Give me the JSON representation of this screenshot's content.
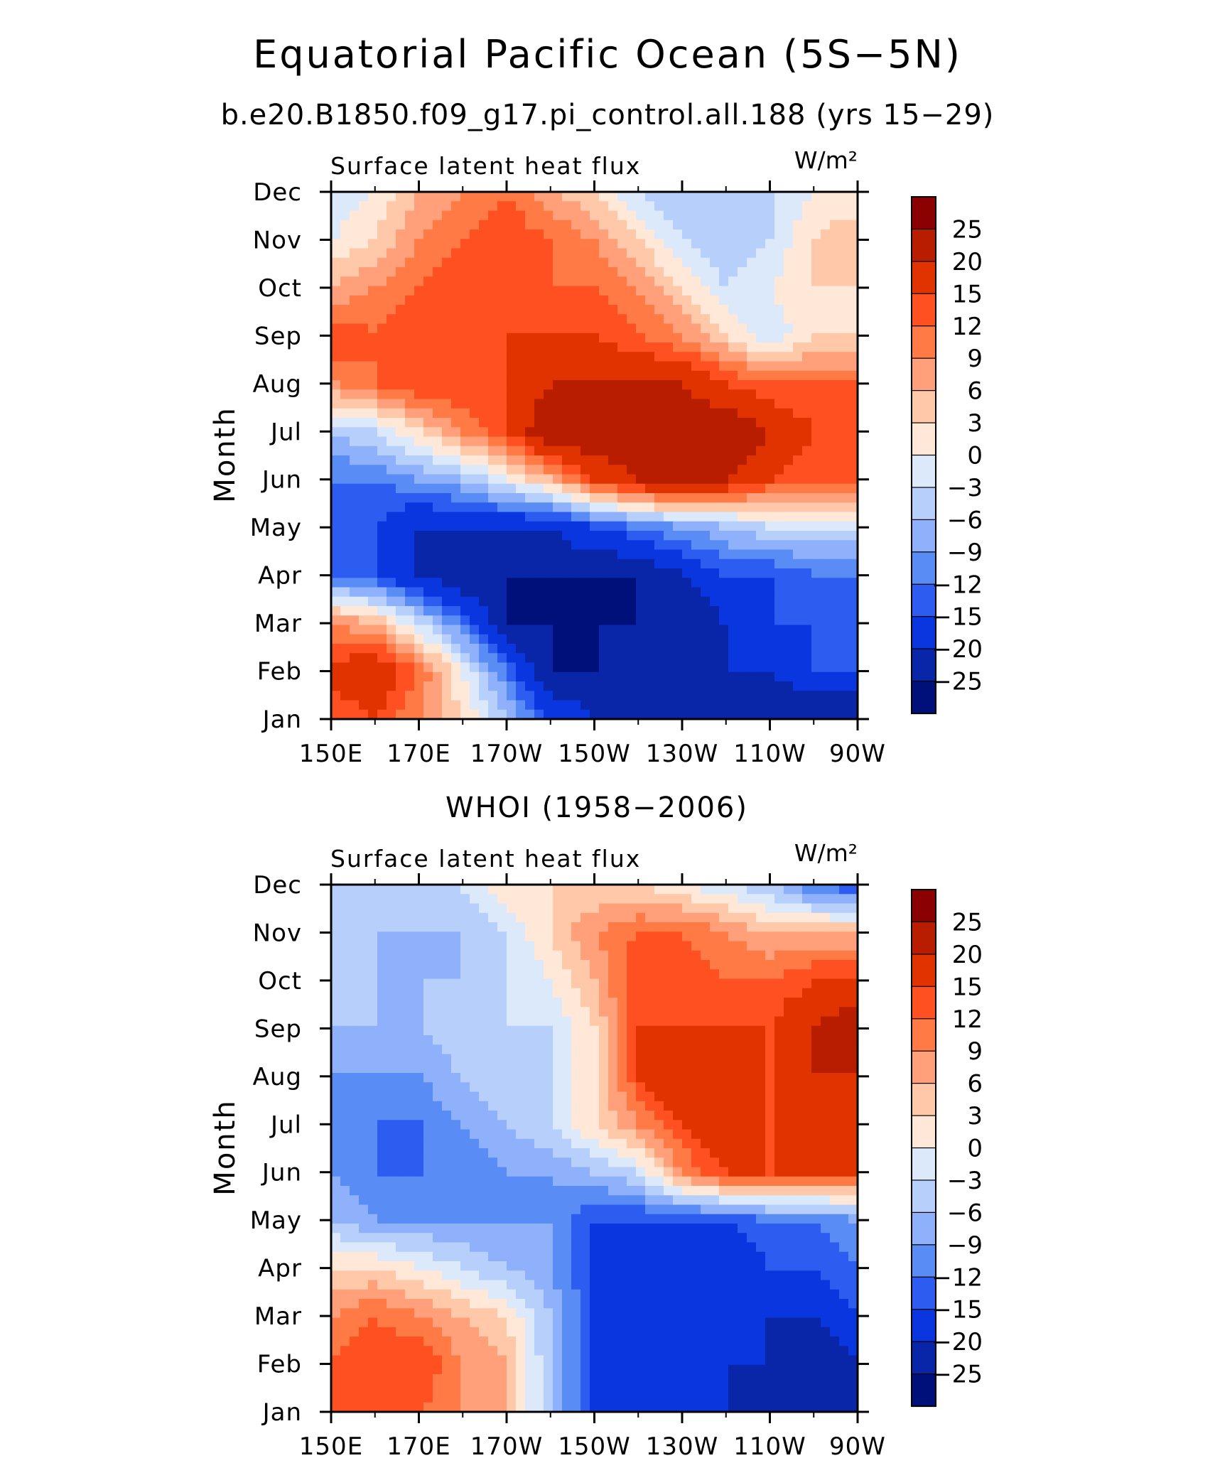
{
  "figure": {
    "title": "Equatorial Pacific Ocean (5S−5N)"
  },
  "colorbar": {
    "levels": [
      "25",
      "20",
      "15",
      "12",
      "9",
      "6",
      "3",
      "0",
      "−3",
      "−6",
      "−9",
      "−12",
      "−15",
      "−20",
      "−25"
    ],
    "colors": [
      "#8b0000",
      "#b81d00",
      "#e03300",
      "#ff5021",
      "#ff7a45",
      "#ffa07a",
      "#ffc8a8",
      "#ffe8d8",
      "#dce9fb",
      "#b7cffb",
      "#8fb1fb",
      "#5a8cf5",
      "#2c5cf0",
      "#0a36e0",
      "#0a26a8",
      "#00107a"
    ]
  },
  "chart_data": [
    {
      "type": "heatmap",
      "title": "b.e20.B1850.f09_g17.pi_control.all.188 (yrs 15−29)",
      "left_label": "Surface latent heat flux",
      "units": "W/m²",
      "ylabel": "Month",
      "xlabel": "",
      "x_ticks": [
        "150E",
        "170E",
        "170W",
        "150W",
        "130W",
        "110W",
        "90W"
      ],
      "y_ticks": [
        "Jan",
        "Feb",
        "Mar",
        "Apr",
        "May",
        "Jun",
        "Jul",
        "Aug",
        "Sep",
        "Oct",
        "Nov",
        "Dec"
      ],
      "x_range": [
        150,
        270
      ],
      "y_range": [
        1,
        12
      ],
      "z": [
        [
          12,
          15,
          9,
          3,
          -6,
          -15,
          -20,
          -20,
          -20,
          -20,
          -25,
          -25,
          -25
        ],
        [
          16,
          20,
          12,
          0,
          -12,
          -25,
          -25,
          -20,
          -20,
          -20,
          -20,
          -15,
          -15
        ],
        [
          9,
          6,
          -3,
          -12,
          -25,
          -25,
          -25,
          -25,
          -25,
          -20,
          -15,
          -15,
          -12
        ],
        [
          -12,
          -15,
          -20,
          -25,
          -25,
          -25,
          -25,
          -25,
          -20,
          -15,
          -15,
          -12,
          -12
        ],
        [
          -12,
          -15,
          -20,
          -20,
          -20,
          -20,
          -15,
          -12,
          -9,
          -6,
          -3,
          -3,
          -3
        ],
        [
          -12,
          -12,
          -9,
          -6,
          0,
          6,
          15,
          20,
          25,
          20,
          15,
          12,
          15
        ],
        [
          -6,
          -3,
          3,
          9,
          15,
          25,
          25,
          25,
          25,
          25,
          20,
          15,
          15
        ],
        [
          9,
          12,
          15,
          15,
          15,
          20,
          20,
          20,
          20,
          15,
          12,
          12,
          12
        ],
        [
          15,
          12,
          15,
          15,
          15,
          15,
          15,
          12,
          9,
          3,
          -3,
          3,
          3
        ],
        [
          6,
          9,
          12,
          15,
          15,
          12,
          12,
          9,
          3,
          -3,
          0,
          3,
          3
        ],
        [
          0,
          3,
          9,
          12,
          15,
          12,
          9,
          3,
          -3,
          -6,
          -3,
          3,
          6
        ],
        [
          -3,
          0,
          6,
          9,
          12,
          6,
          3,
          -3,
          -6,
          -6,
          -3,
          0,
          0
        ]
      ]
    },
    {
      "type": "heatmap",
      "title": "WHOI (1958−2006)",
      "left_label": "Surface latent heat flux",
      "units": "W/m²",
      "ylabel": "Month",
      "xlabel": "",
      "x_ticks": [
        "150E",
        "170E",
        "170W",
        "150W",
        "130W",
        "110W",
        "90W"
      ],
      "y_ticks": [
        "Jan",
        "Feb",
        "Mar",
        "Apr",
        "May",
        "Jun",
        "Jul",
        "Aug",
        "Sep",
        "Oct",
        "Nov",
        "Dec"
      ],
      "x_range": [
        150,
        270
      ],
      "y_range": [
        1,
        12
      ],
      "z": [
        [
          12,
          15,
          12,
          9,
          6,
          -6,
          -15,
          -15,
          -15,
          -20,
          -20,
          -25,
          -25
        ],
        [
          12,
          15,
          15,
          9,
          6,
          -6,
          -15,
          -15,
          -20,
          -20,
          -20,
          -25,
          -20
        ],
        [
          9,
          12,
          9,
          6,
          3,
          -6,
          -15,
          -15,
          -15,
          -15,
          -20,
          -20,
          -15
        ],
        [
          3,
          3,
          0,
          -3,
          -6,
          -9,
          -15,
          -15,
          -15,
          -20,
          -15,
          -15,
          -12
        ],
        [
          -6,
          -9,
          -9,
          -9,
          -9,
          -9,
          -15,
          -15,
          -15,
          -15,
          -12,
          -12,
          -9
        ],
        [
          -9,
          -12,
          -12,
          -12,
          -9,
          -9,
          -6,
          -3,
          9,
          15,
          15,
          15,
          15
        ],
        [
          -12,
          -12,
          -12,
          -9,
          -6,
          -3,
          3,
          9,
          15,
          20,
          15,
          20,
          20
        ],
        [
          -9,
          -9,
          -9,
          -6,
          -3,
          -3,
          3,
          15,
          20,
          20,
          15,
          20,
          20
        ],
        [
          -6,
          -6,
          -6,
          -3,
          -3,
          -3,
          3,
          15,
          15,
          15,
          15,
          20,
          25
        ],
        [
          -3,
          -6,
          -6,
          -6,
          -3,
          0,
          6,
          15,
          15,
          12,
          12,
          15,
          15
        ],
        [
          -6,
          -6,
          -6,
          -6,
          -3,
          3,
          9,
          12,
          12,
          9,
          6,
          6,
          6
        ],
        [
          -3,
          -3,
          -3,
          -3,
          3,
          3,
          3,
          3,
          0,
          -3,
          -6,
          -12,
          -15
        ]
      ]
    }
  ]
}
